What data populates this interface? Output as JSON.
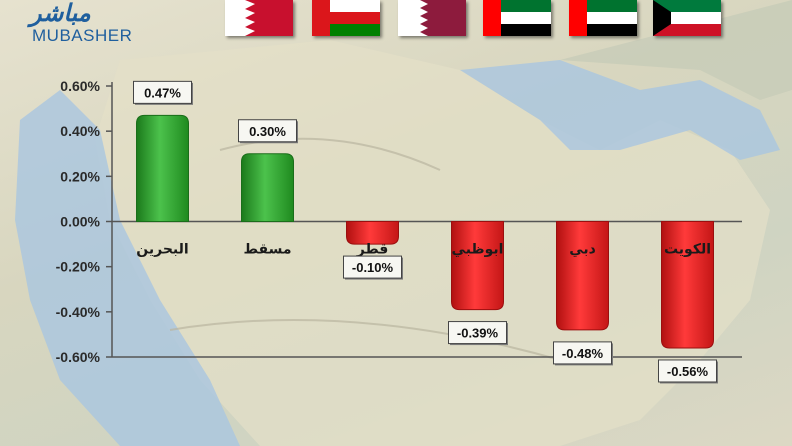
{
  "brand": {
    "arabic": "مباشر",
    "latin": "MUBASHER"
  },
  "colors": {
    "positive": "#2ca02c",
    "negative": "#e02222",
    "axis": "#555555"
  },
  "flags": [
    {
      "country": "البحرين",
      "colors": [
        "#ffffff",
        "#c8102e"
      ]
    },
    {
      "country": "مسقط",
      "colors": [
        "#ffffff",
        "#db161b",
        "#008000"
      ]
    },
    {
      "country": "قطر",
      "colors": [
        "#ffffff",
        "#8d1b3d"
      ]
    },
    {
      "country": "ابوظبي",
      "colors": [
        "#00732f",
        "#ffffff",
        "#000000",
        "#ff0000"
      ]
    },
    {
      "country": "دبي",
      "colors": [
        "#00732f",
        "#ffffff",
        "#000000",
        "#ff0000"
      ]
    },
    {
      "country": "الكويت",
      "colors": [
        "#007a3d",
        "#ffffff",
        "#ce1126",
        "#000000"
      ]
    }
  ],
  "chart_data": {
    "type": "bar",
    "categories": [
      "البحرين",
      "مسقط",
      "قطر",
      "ابوظبي",
      "دبي",
      "الكويت"
    ],
    "values": [
      0.47,
      0.3,
      -0.1,
      -0.39,
      -0.48,
      -0.56
    ],
    "data_labels": [
      "0.47%",
      "0.30%",
      "-0.10%",
      "-0.39%",
      "-0.48%",
      "-0.56%"
    ],
    "yticks": [
      "0.60%",
      "0.40%",
      "0.20%",
      "0.00%",
      "-0.20%",
      "-0.40%",
      "-0.60%"
    ],
    "ytick_values": [
      0.6,
      0.4,
      0.2,
      0,
      -0.2,
      -0.4,
      -0.6
    ],
    "ylim": [
      -0.6,
      0.6
    ],
    "title": "",
    "xlabel": "",
    "ylabel": "",
    "grid": false
  }
}
